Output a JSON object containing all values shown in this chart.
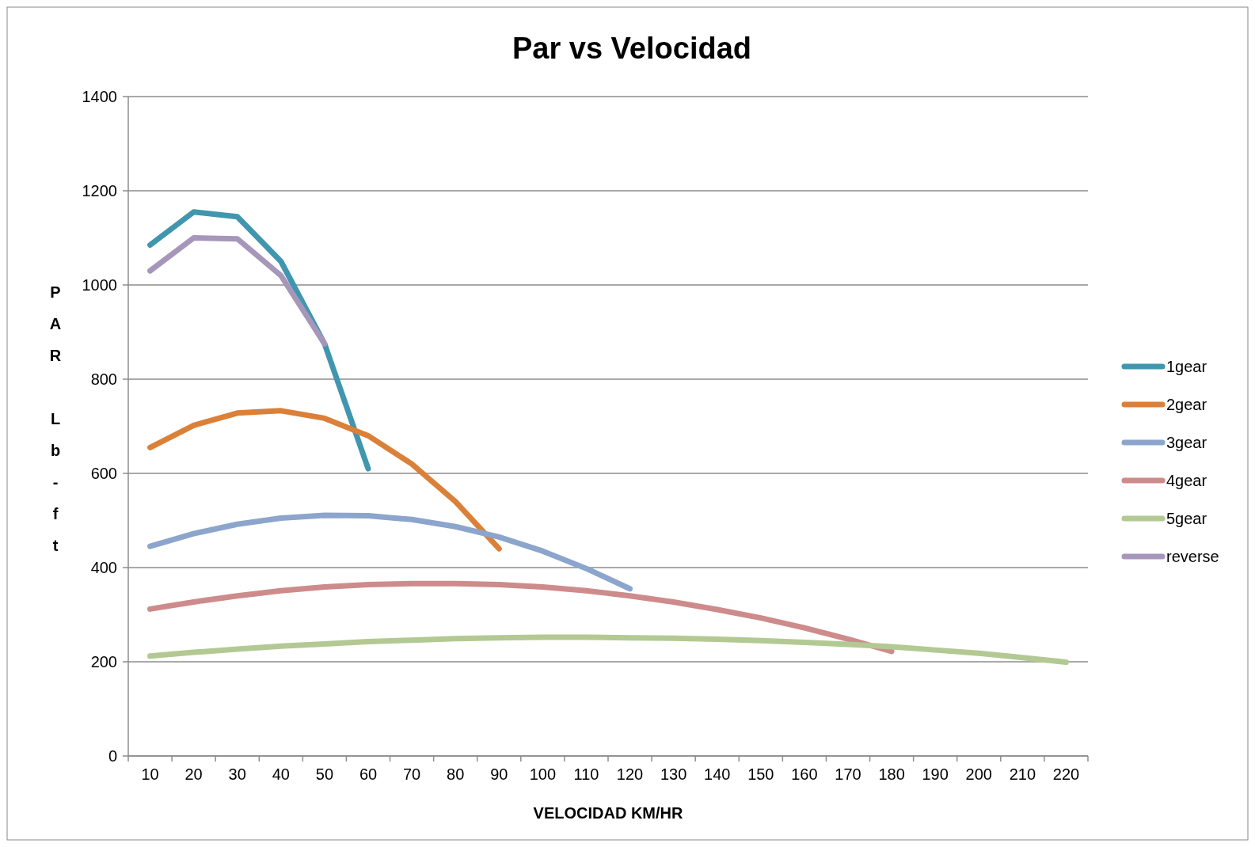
{
  "chart_data": {
    "type": "line",
    "title": "Par vs Velocidad",
    "xlabel": "VELOCIDAD KM/HR",
    "ylabel": "PAR Lb-ft",
    "categories": [
      "10",
      "20",
      "30",
      "40",
      "50",
      "60",
      "70",
      "80",
      "90",
      "100",
      "110",
      "120",
      "130",
      "140",
      "150",
      "160",
      "170",
      "180",
      "190",
      "200",
      "210",
      "220"
    ],
    "ylim": [
      0,
      1400
    ],
    "yticks": [
      0,
      200,
      400,
      600,
      800,
      1000,
      1200,
      1400
    ],
    "grid": "y",
    "legend": "right",
    "marker": "none",
    "line_style": "solid",
    "series": [
      {
        "name": "1gear",
        "color": "#4096ae",
        "values": [
          1085,
          1155,
          1145,
          1050,
          875,
          610,
          null,
          null,
          null,
          null,
          null,
          null,
          null,
          null,
          null,
          null,
          null,
          null,
          null,
          null,
          null,
          null
        ]
      },
      {
        "name": "2gear",
        "color": "#db8038",
        "values": [
          655,
          702,
          728,
          733,
          717,
          680,
          620,
          540,
          440,
          null,
          null,
          null,
          null,
          null,
          null,
          null,
          null,
          null,
          null,
          null,
          null,
          null
        ]
      },
      {
        "name": "3gear",
        "color": "#8ca5cc",
        "values": [
          445,
          472,
          492,
          505,
          511,
          510,
          502,
          487,
          465,
          435,
          398,
          355,
          null,
          null,
          null,
          null,
          null,
          null,
          null,
          null,
          null,
          null
        ]
      },
      {
        "name": "4gear",
        "color": "#ce8b8b",
        "values": [
          312,
          327,
          340,
          351,
          359,
          364,
          366,
          366,
          364,
          359,
          351,
          340,
          327,
          311,
          293,
          272,
          248,
          222,
          null,
          null,
          null,
          null
        ]
      },
      {
        "name": "5gear",
        "color": "#b3c993",
        "values": [
          212,
          220,
          227,
          233,
          238,
          243,
          246,
          249,
          251,
          252,
          252,
          251,
          250,
          248,
          245,
          241,
          237,
          232,
          225,
          218,
          209,
          199
        ]
      },
      {
        "name": "reverse",
        "color": "#a697ba",
        "values": [
          1030,
          1100,
          1098,
          1020,
          875,
          null,
          null,
          null,
          null,
          null,
          null,
          null,
          null,
          null,
          null,
          null,
          null,
          null,
          null,
          null,
          null,
          null
        ]
      }
    ]
  }
}
